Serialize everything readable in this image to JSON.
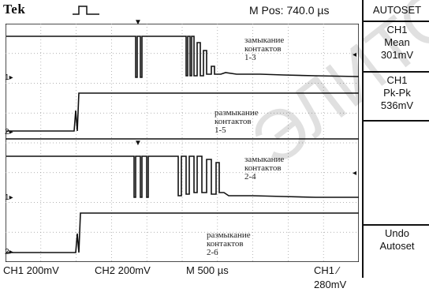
{
  "header": {
    "brand": "Tek",
    "trigger_symbol": "⎍",
    "mpos": "M Pos: 740.0 µs"
  },
  "menu": {
    "title": "AUTOSET",
    "measure1": {
      "ch": "CH1",
      "label": "Mean",
      "value": "301mV"
    },
    "measure2": {
      "ch": "CH1",
      "label": "Pk-Pk",
      "value": "536mV"
    },
    "undo": {
      "line1": "Undo",
      "line2": "Autoset"
    }
  },
  "status": {
    "ch1": "CH1  200mV",
    "ch2": "CH2  200mV",
    "time": "M 500 µs",
    "trigger": "CH1 ⁄ 280mV"
  },
  "markers": {
    "ch1": "1",
    "ch2": "2"
  },
  "annotations": [
    {
      "lines": [
        "замыкание",
        "контактов",
        "1-3"
      ]
    },
    {
      "lines": [
        "размыкание",
        "контактов",
        "1-5"
      ]
    },
    {
      "lines": [
        "замыкание",
        "контактов",
        "2-4"
      ]
    },
    {
      "lines": [
        "размыкание",
        "контактов",
        "2-6"
      ]
    }
  ],
  "colors": {
    "trace": "#111111",
    "grid": "#999999",
    "background": "#ffffff"
  }
}
